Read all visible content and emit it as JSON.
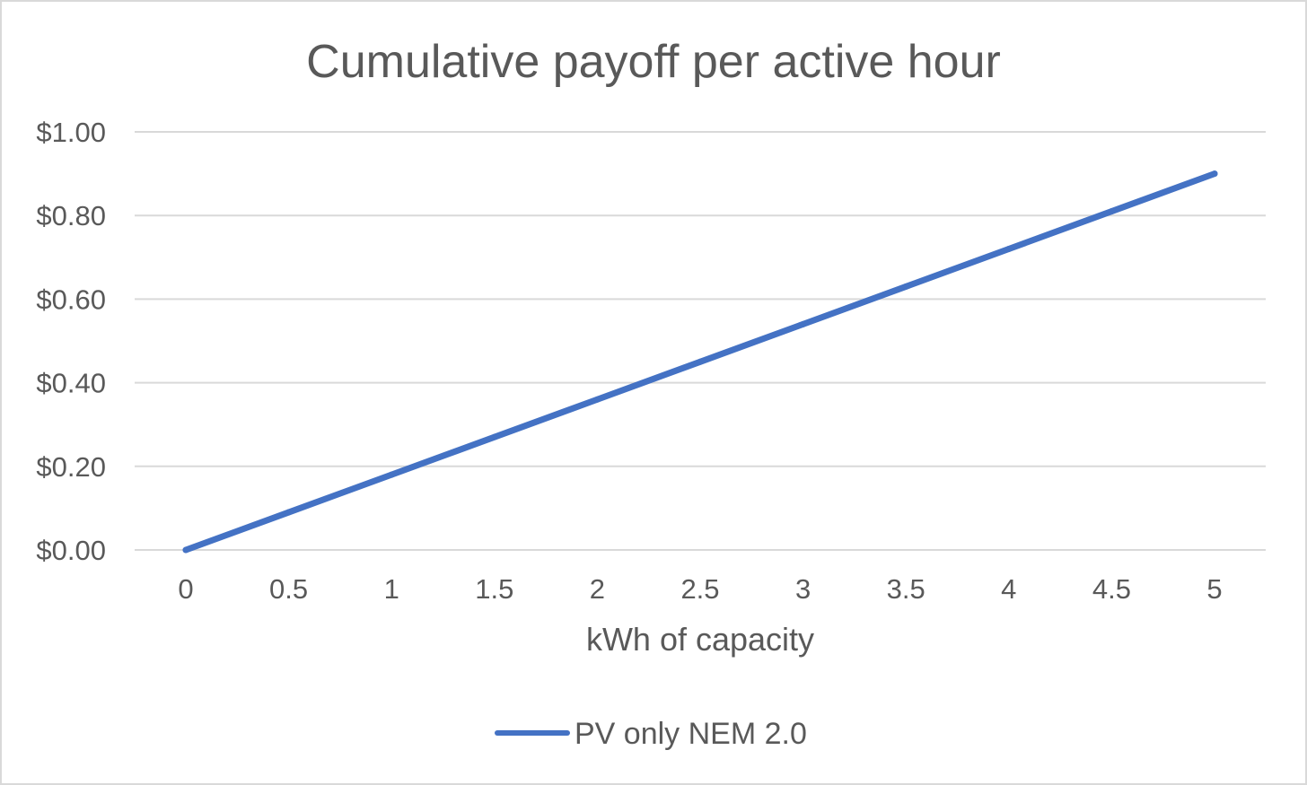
{
  "chart_data": {
    "type": "line",
    "title": "Cumulative payoff per active hour",
    "xlabel": "kWh of capacity",
    "ylabel": "",
    "categories": [
      "0",
      "0.5",
      "1",
      "1.5",
      "2",
      "2.5",
      "3",
      "3.5",
      "4",
      "4.5",
      "5"
    ],
    "x": [
      0,
      0.5,
      1,
      1.5,
      2,
      2.5,
      3,
      3.5,
      4,
      4.5,
      5
    ],
    "series": [
      {
        "name": "PV only NEM 2.0",
        "color": "#4472c4",
        "values": [
          0,
          0.09,
          0.18,
          0.27,
          0.36,
          0.45,
          0.54,
          0.63,
          0.72,
          0.81,
          0.9
        ]
      }
    ],
    "ylim": [
      0,
      1
    ],
    "y_ticks": [
      0,
      0.2,
      0.4,
      0.6,
      0.8,
      1.0
    ],
    "y_tick_labels": [
      "$0.00",
      "$0.20",
      "$0.40",
      "$0.60",
      "$0.80",
      "$1.00"
    ],
    "grid": true,
    "legend_position": "bottom"
  },
  "colors": {
    "line": "#4472c4",
    "text": "#595959",
    "grid": "#d9d9d9",
    "border": "#d9d9d9"
  }
}
